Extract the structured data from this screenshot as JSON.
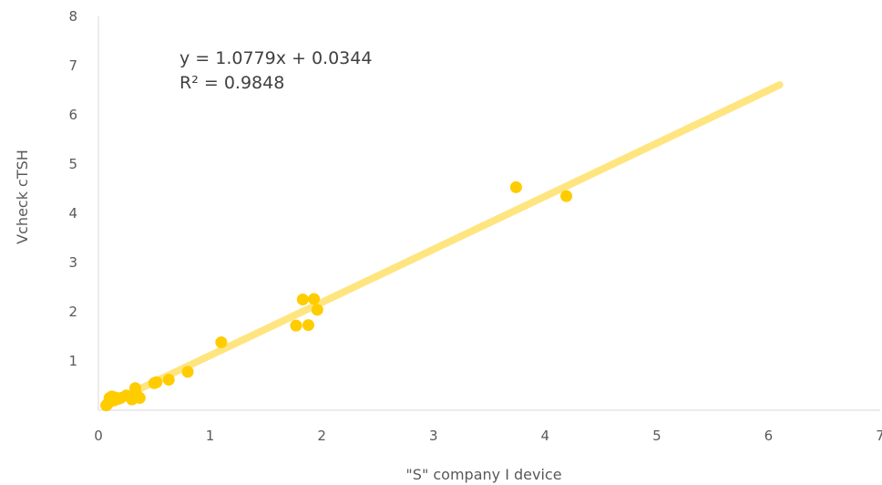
{
  "chart_data": {
    "type": "scatter",
    "title": "",
    "xlabel": "\"S\" company I device",
    "ylabel": "Vcheck cTSH",
    "xlim": [
      0,
      7
    ],
    "ylim": [
      0,
      8
    ],
    "x_ticks": [
      "0",
      "1",
      "2",
      "3",
      "4",
      "5",
      "6",
      "7"
    ],
    "y_ticks": [
      "1",
      "2",
      "3",
      "4",
      "5",
      "6",
      "7",
      "8"
    ],
    "grid": false,
    "legend": "none",
    "colors": {
      "points": "#FFCC00",
      "trendline": "#FFE580",
      "axis": "#D9D9D9",
      "text": "#595959"
    },
    "trendline": {
      "slope": 1.0779,
      "intercept": 0.0344,
      "x_range": [
        0.07,
        6.1
      ],
      "equation": "y = 1.0779x + 0.0344",
      "r_squared": "R² = 0.9848"
    },
    "points": [
      {
        "x": 0.07,
        "y": 0.1
      },
      {
        "x": 0.08,
        "y": 0.12
      },
      {
        "x": 0.09,
        "y": 0.15
      },
      {
        "x": 0.1,
        "y": 0.18
      },
      {
        "x": 0.11,
        "y": 0.22
      },
      {
        "x": 0.1,
        "y": 0.25
      },
      {
        "x": 0.12,
        "y": 0.28
      },
      {
        "x": 0.14,
        "y": 0.2
      },
      {
        "x": 0.15,
        "y": 0.26
      },
      {
        "x": 0.18,
        "y": 0.23
      },
      {
        "x": 0.2,
        "y": 0.25
      },
      {
        "x": 0.25,
        "y": 0.3
      },
      {
        "x": 0.3,
        "y": 0.22
      },
      {
        "x": 0.33,
        "y": 0.45
      },
      {
        "x": 0.34,
        "y": 0.32
      },
      {
        "x": 0.37,
        "y": 0.25
      },
      {
        "x": 0.5,
        "y": 0.55
      },
      {
        "x": 0.52,
        "y": 0.57
      },
      {
        "x": 0.63,
        "y": 0.62
      },
      {
        "x": 0.8,
        "y": 0.78
      },
      {
        "x": 1.1,
        "y": 1.38
      },
      {
        "x": 1.77,
        "y": 1.72
      },
      {
        "x": 1.83,
        "y": 2.25
      },
      {
        "x": 1.88,
        "y": 1.73
      },
      {
        "x": 1.93,
        "y": 2.26
      },
      {
        "x": 1.96,
        "y": 2.04
      },
      {
        "x": 3.74,
        "y": 4.53
      },
      {
        "x": 4.19,
        "y": 4.35
      }
    ]
  }
}
